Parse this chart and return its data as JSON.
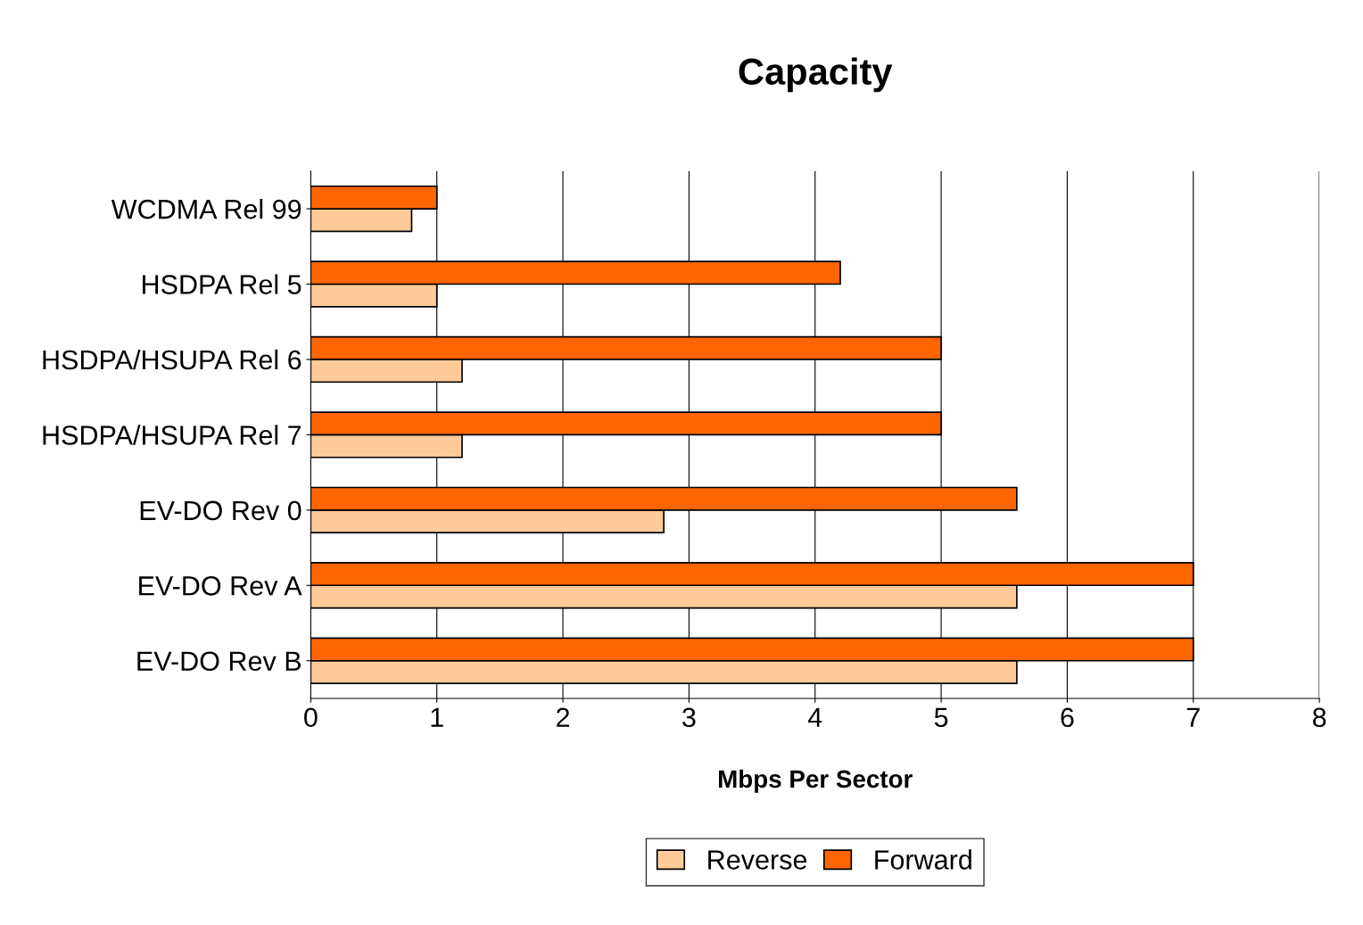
{
  "chart_data": {
    "type": "bar",
    "orientation": "horizontal",
    "title": "Capacity",
    "xlabel": "Mbps Per Sector",
    "categories": [
      "WCDMA Rel 99",
      "HSDPA Rel 5",
      "HSDPA/HSUPA Rel 6",
      "HSDPA/HSUPA Rel 7",
      "EV-DO Rev 0",
      "EV-DO Rev A",
      "EV-DO Rev B"
    ],
    "series": [
      {
        "name": "Reverse",
        "color": "#ffcc99",
        "values": [
          0.8,
          1.0,
          1.2,
          1.2,
          2.8,
          5.6,
          5.6
        ]
      },
      {
        "name": "Forward",
        "color": "#ff6600",
        "values": [
          1.0,
          4.2,
          5.0,
          5.0,
          5.6,
          7.0,
          7.0
        ]
      }
    ],
    "xlim": [
      0,
      8
    ],
    "xticks": [
      0,
      1,
      2,
      3,
      4,
      5,
      6,
      7,
      8
    ],
    "grid": "x",
    "legend": "bottom"
  }
}
